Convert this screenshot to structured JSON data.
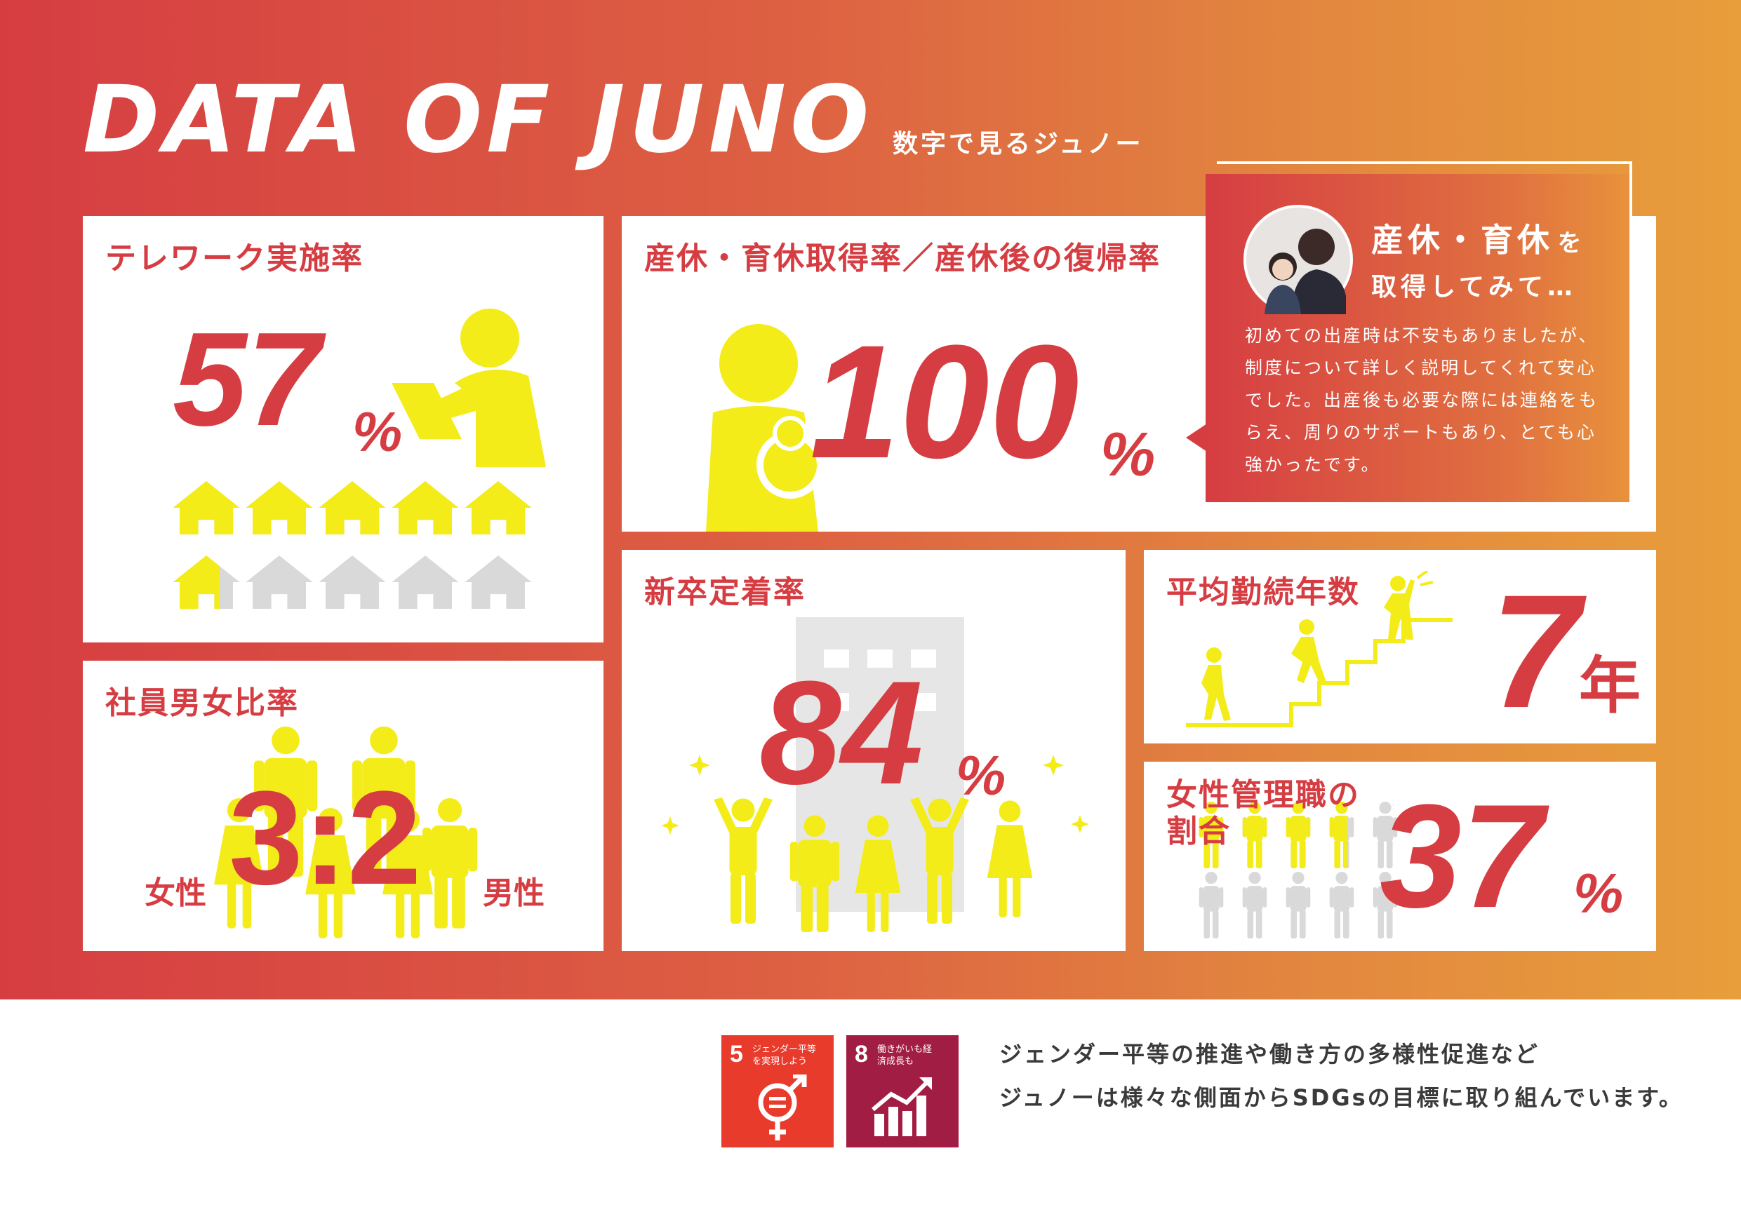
{
  "header": {
    "title": "DATA OF JUNO",
    "subtitle": "数字で見るジュノー"
  },
  "telework": {
    "title": "テレワーク実施率",
    "value": "57",
    "unit": "%",
    "houses_total": 10,
    "houses_filled": 5.7,
    "icon": "house-icon"
  },
  "maternity": {
    "title": "産休・育休取得率／産休後の復帰率",
    "value": "100",
    "unit": "%",
    "icon": "mother-baby-icon"
  },
  "testimonial": {
    "heading_main": "産休・育休",
    "heading_particle": "を",
    "heading_line2": "取得してみて…",
    "body": "初めての出産時は不安もありましたが、制度について詳しく説明してくれて安心でした。出産後も必要な際には連絡をもらえ、周りのサポートもあり、とても心強かったです。",
    "photo": "mother-child-photo"
  },
  "gender_ratio": {
    "title": "社員男女比率",
    "value": "3:2",
    "female_label": "女性",
    "male_label": "男性"
  },
  "retention": {
    "title": "新卒定着率",
    "value": "84",
    "unit": "%"
  },
  "tenure": {
    "title": "平均勤続年数",
    "value": "7",
    "unit": "年"
  },
  "female_managers": {
    "title_line1": "女性管理職の",
    "title_line2": "割合",
    "value": "37",
    "unit": "%",
    "people_total": 10,
    "people_filled": 3.7
  },
  "sdgs": {
    "goal5": {
      "number": "5",
      "label": "ジェンダー平等を実現しよう",
      "color": "#e83b2c"
    },
    "goal8": {
      "number": "8",
      "label": "働きがいも経済成長も",
      "color": "#a21d44"
    }
  },
  "footer": {
    "line1": "ジェンダー平等の推進や働き方の多様性促進など",
    "line2": "ジュノーは様々な側面からSDGsの目標に取り組んでいます。"
  },
  "colors": {
    "accent_red": "#d63d42",
    "accent_orange": "#e89e3b",
    "icon_yellow": "#f3ec19",
    "icon_gray": "#d9d9d9"
  }
}
